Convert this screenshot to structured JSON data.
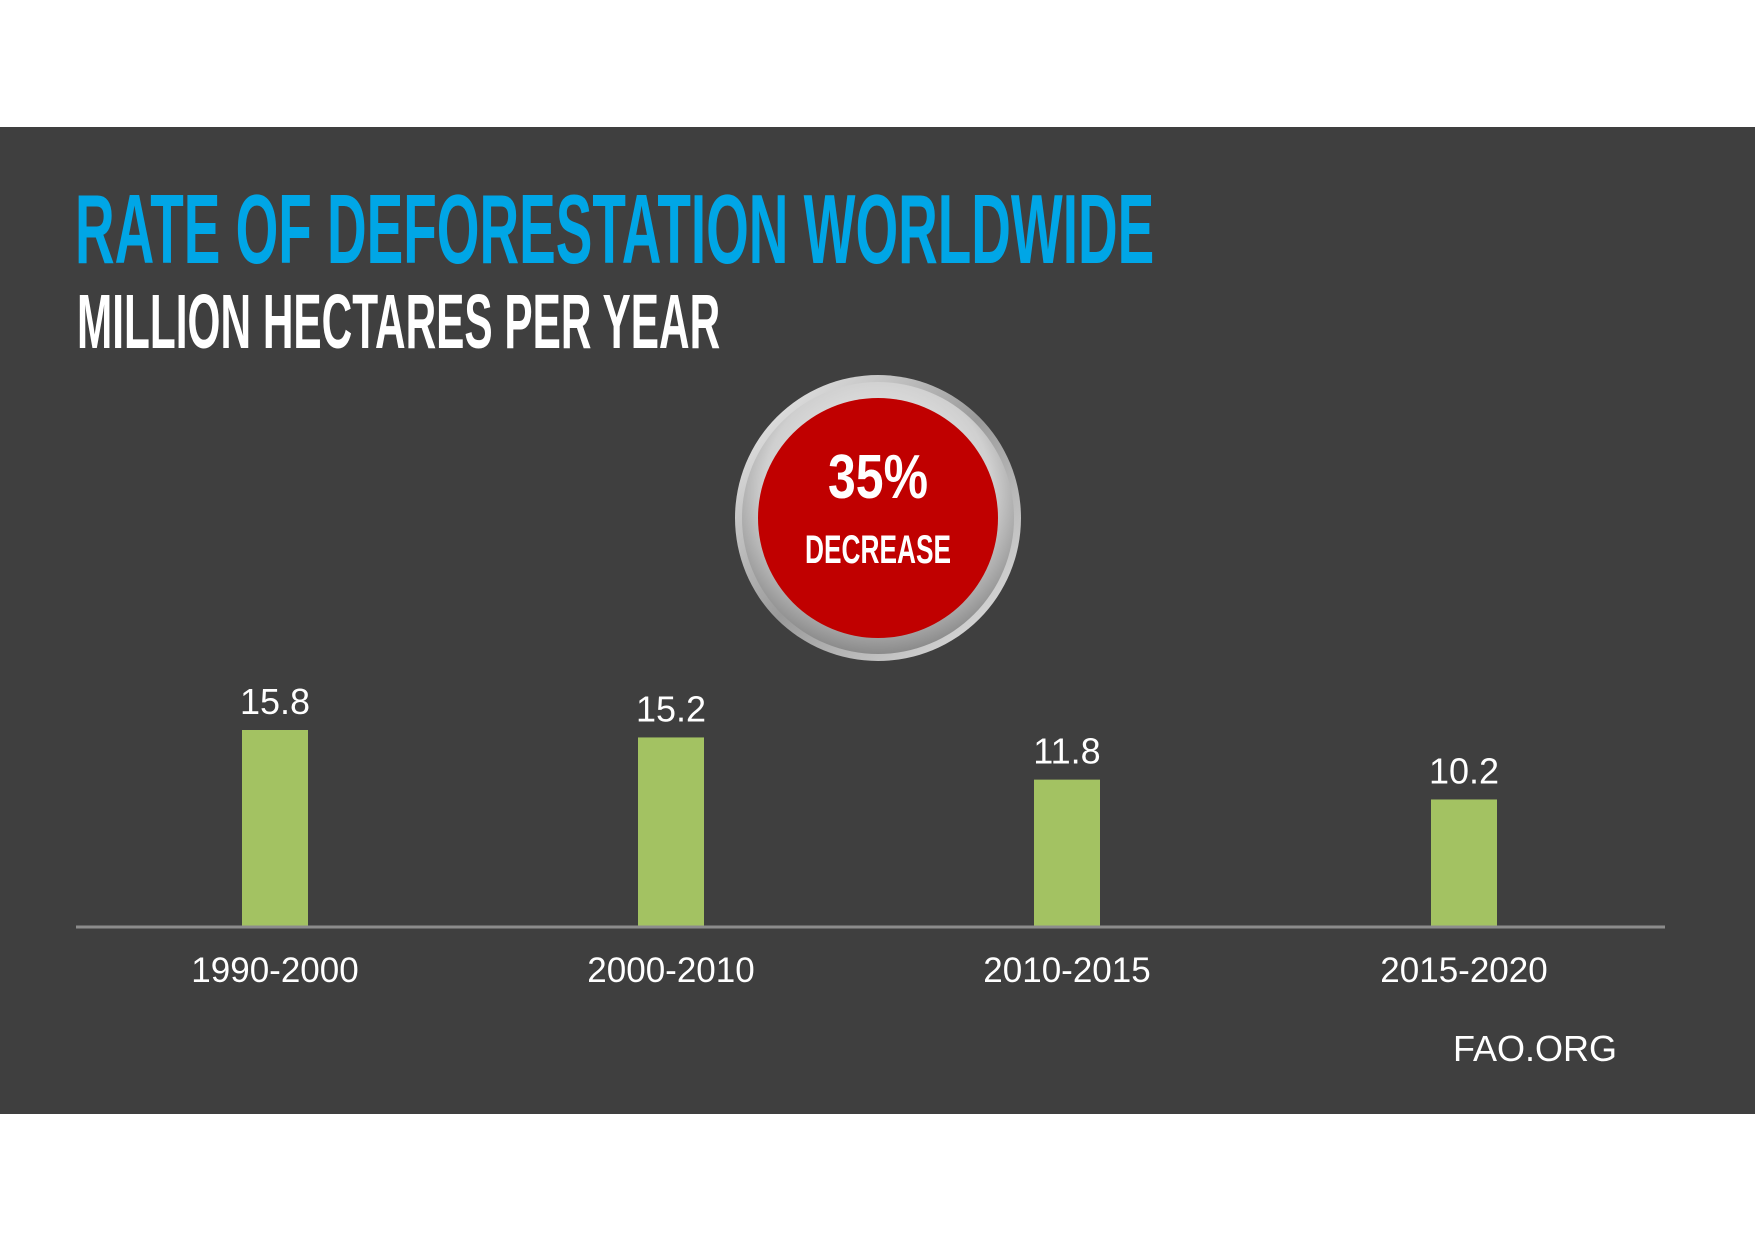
{
  "chart_data": {
    "type": "bar",
    "title": "RATE OF DEFORESTATION WORLDWIDE",
    "subtitle": "MILLION HECTARES PER YEAR",
    "categories": [
      "1990-2000",
      "2000-2010",
      "2010-2015",
      "2015-2020"
    ],
    "values": [
      15.8,
      15.2,
      11.8,
      10.2
    ],
    "data_labels": [
      "15.8",
      "15.2",
      "11.8",
      "10.2"
    ],
    "ylim": [
      0,
      15.8
    ],
    "grid": false,
    "bar_color": "#a3c262",
    "title_color": "#00a6e6",
    "annotation": {
      "value": "35%",
      "label": "DECREASE",
      "color": "#c00000"
    }
  },
  "source": "FAO.ORG"
}
